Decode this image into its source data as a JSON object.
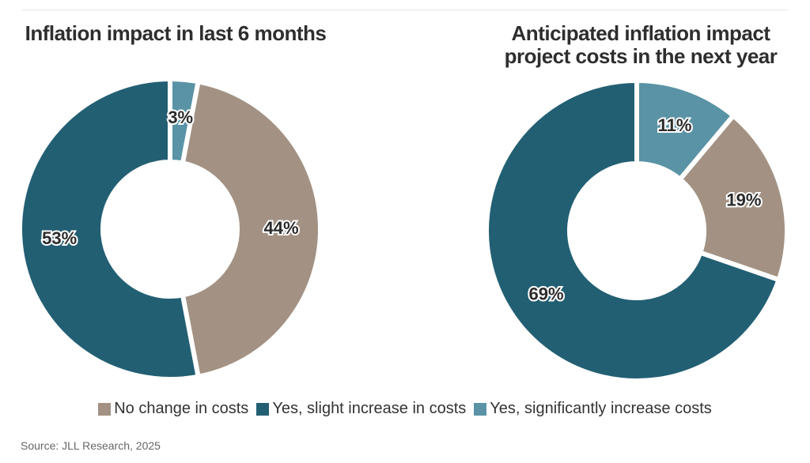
{
  "chart_data": [
    {
      "type": "pie",
      "title": "Inflation impact in last 6 months",
      "categories": [
        "Yes, significantly increase costs",
        "No change in costs",
        "Yes, slight increase in costs"
      ],
      "values": [
        3,
        44,
        53
      ],
      "labels": [
        "3%",
        "44%",
        "53%"
      ],
      "colors": [
        "#5A93A5",
        "#A39283",
        "#225F73"
      ]
    },
    {
      "type": "pie",
      "title": "Anticipated inflation impact project costs in the next year",
      "categories": [
        "Yes, significantly increase costs",
        "No change in costs",
        "Yes, slight increase in costs"
      ],
      "values": [
        11,
        19,
        69
      ],
      "labels": [
        "11%",
        "19%",
        "69%"
      ],
      "colors": [
        "#5A93A5",
        "#A39283",
        "#225F73"
      ]
    }
  ],
  "legend": [
    {
      "label": "No change in costs",
      "color": "#A39283"
    },
    {
      "label": "Yes, slight increase in costs",
      "color": "#225F73"
    },
    {
      "label": "Yes, significantly increase costs",
      "color": "#5A93A5"
    }
  ],
  "source": "Source: JLL Research, 2025"
}
